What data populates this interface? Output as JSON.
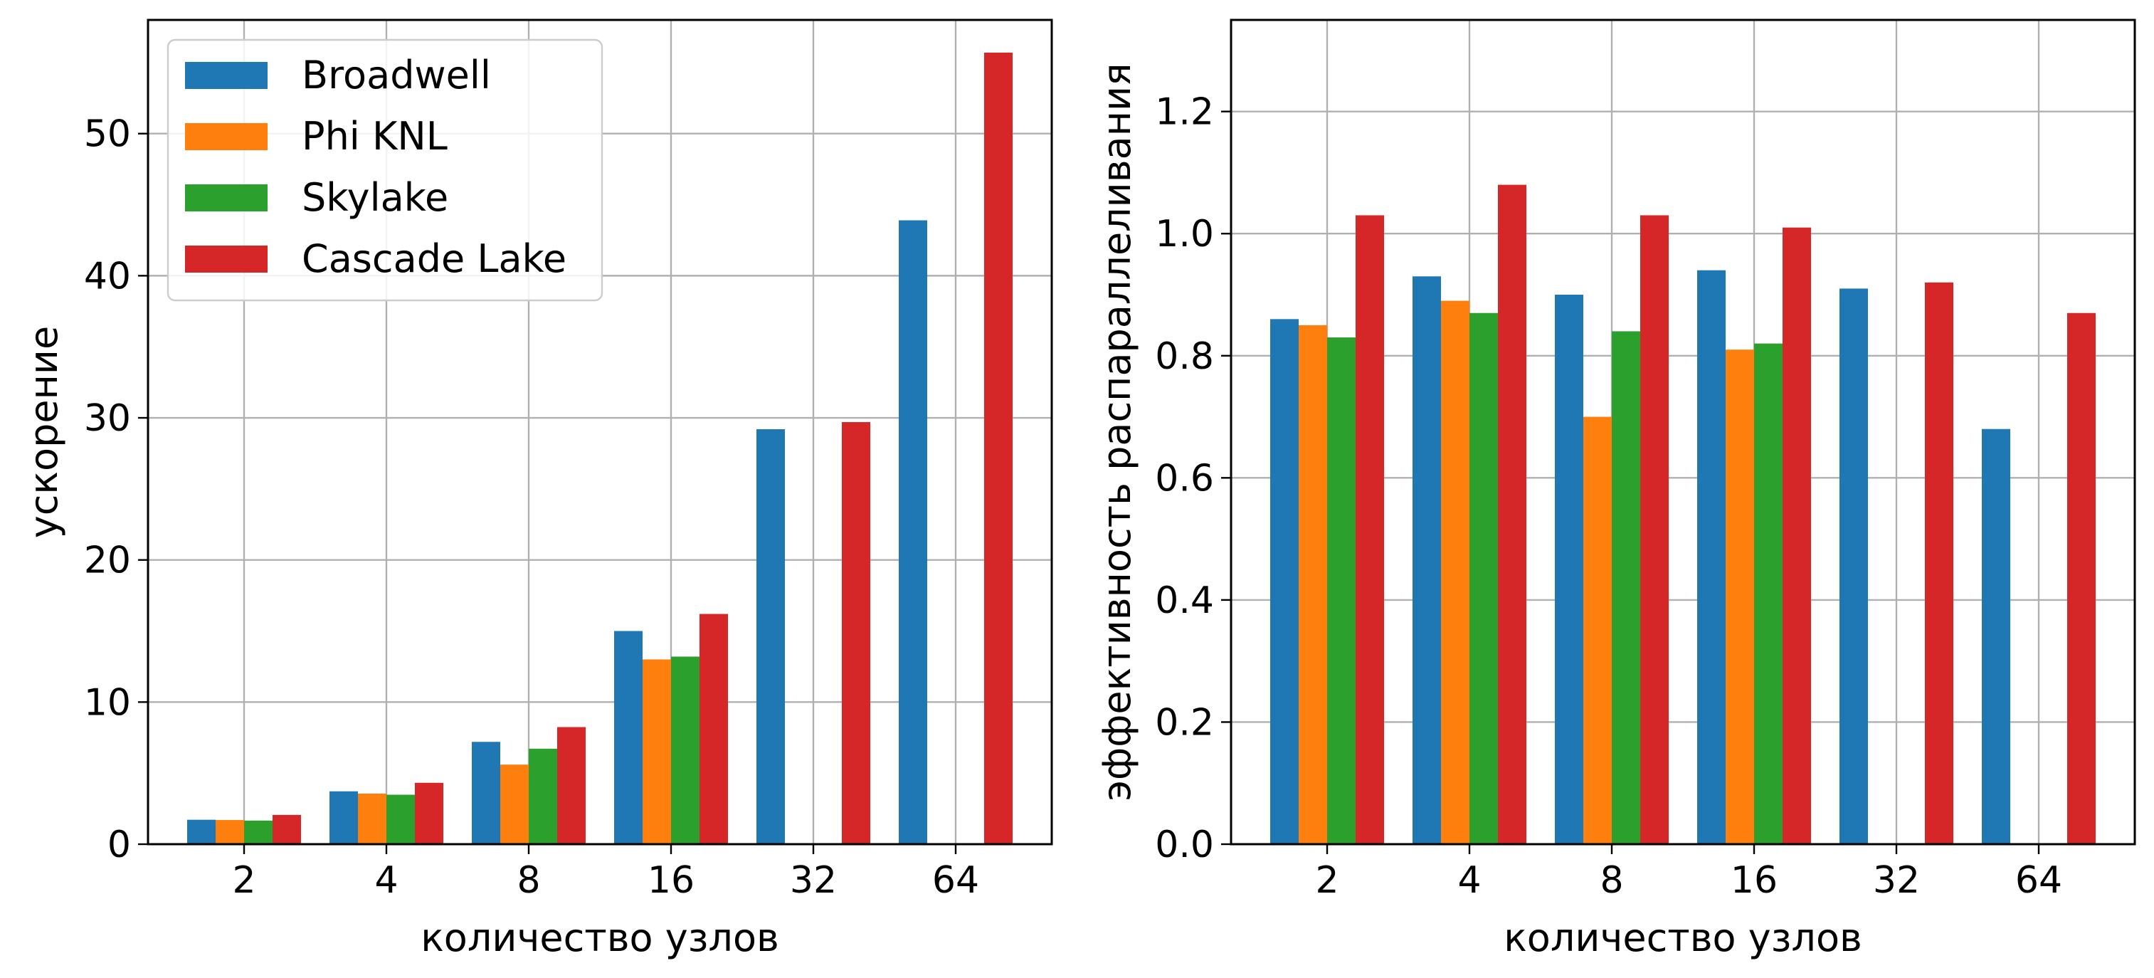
{
  "chart_data": [
    {
      "type": "bar",
      "title": "",
      "xlabel": "количество узлов",
      "ylabel": "ускорение",
      "categories": [
        "2",
        "4",
        "8",
        "16",
        "32",
        "64"
      ],
      "ylim": [
        0,
        58
      ],
      "yticks": [
        0,
        10,
        20,
        30,
        40,
        50
      ],
      "grid": true,
      "legend": "top-left",
      "series": [
        {
          "name": "Broadwell",
          "color": "#1f77b4",
          "values": [
            1.72,
            3.72,
            7.2,
            15.0,
            29.2,
            43.9
          ]
        },
        {
          "name": "Phi KNL",
          "color": "#ff7f0e",
          "values": [
            1.7,
            3.56,
            5.6,
            13.0,
            null,
            null
          ]
        },
        {
          "name": "Skylake",
          "color": "#2ca02c",
          "values": [
            1.66,
            3.48,
            6.72,
            13.2,
            null,
            null
          ]
        },
        {
          "name": "Cascade Lake",
          "color": "#d62728",
          "values": [
            2.06,
            4.32,
            8.24,
            16.2,
            29.7,
            55.7
          ]
        }
      ]
    },
    {
      "type": "bar",
      "title": "",
      "xlabel": "количество узлов",
      "ylabel": "эффективность распараллеливания",
      "categories": [
        "2",
        "4",
        "8",
        "16",
        "32",
        "64"
      ],
      "ylim": [
        0,
        1.35
      ],
      "yticks": [
        0.0,
        0.2,
        0.4,
        0.6,
        0.8,
        1.0,
        1.2
      ],
      "grid": true,
      "series": [
        {
          "name": "Broadwell",
          "color": "#1f77b4",
          "values": [
            0.86,
            0.93,
            0.9,
            0.94,
            0.91,
            0.68
          ]
        },
        {
          "name": "Phi KNL",
          "color": "#ff7f0e",
          "values": [
            0.85,
            0.89,
            0.7,
            0.81,
            null,
            null
          ]
        },
        {
          "name": "Skylake",
          "color": "#2ca02c",
          "values": [
            0.83,
            0.87,
            0.84,
            0.82,
            null,
            null
          ]
        },
        {
          "name": "Cascade Lake",
          "color": "#d62728",
          "values": [
            1.03,
            1.08,
            1.03,
            1.01,
            0.92,
            0.87
          ]
        }
      ]
    }
  ]
}
